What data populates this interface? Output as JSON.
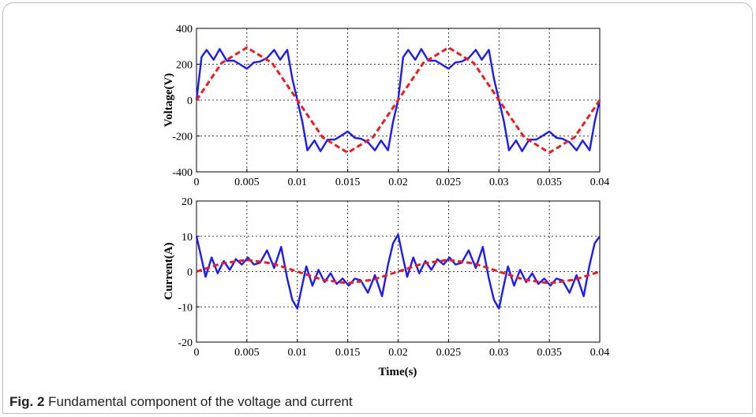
{
  "caption": {
    "label": "Fig. 2",
    "text": "Fundamental component of the voltage and current"
  },
  "colors": {
    "measured": "#1a1aff",
    "fundamental": "#ee1c1c"
  },
  "chart_data": [
    {
      "type": "line",
      "title": "",
      "xlabel": "",
      "ylabel": "Voltage(V)",
      "xlim": [
        0,
        0.04
      ],
      "ylim": [
        -400,
        400
      ],
      "xticks": [
        "0",
        "0.005",
        "0.01",
        "0.015",
        "0.02",
        "0.025",
        "0.03",
        "0.035",
        "0.04"
      ],
      "yticks": [
        "400",
        "200",
        "0",
        "-200",
        "-400"
      ],
      "grid": true,
      "series": [
        {
          "style": "solid-blue",
          "x": [
            0,
            0.0005,
            0.001,
            0.0017,
            0.0023,
            0.003,
            0.0037,
            0.0043,
            0.005,
            0.0057,
            0.0063,
            0.007,
            0.0077,
            0.0083,
            0.009,
            0.0095,
            0.01,
            0.0105,
            0.011,
            0.0117,
            0.0123,
            0.013,
            0.0137,
            0.0143,
            0.015,
            0.0157,
            0.0163,
            0.017,
            0.0177,
            0.0183,
            0.019,
            0.0195,
            0.02,
            0.0205,
            0.021,
            0.0217,
            0.0223,
            0.023,
            0.0237,
            0.0243,
            0.025,
            0.0257,
            0.0263,
            0.027,
            0.0277,
            0.0283,
            0.029,
            0.0295,
            0.03,
            0.0305,
            0.031,
            0.0317,
            0.0323,
            0.033,
            0.0337,
            0.0343,
            0.035,
            0.0357,
            0.0363,
            0.037,
            0.0377,
            0.0383,
            0.039,
            0.0395,
            0.04
          ],
          "y": [
            0,
            240,
            280,
            225,
            285,
            220,
            220,
            200,
            175,
            210,
            215,
            235,
            280,
            225,
            280,
            120,
            0,
            -120,
            -280,
            -225,
            -285,
            -220,
            -220,
            -200,
            -175,
            -210,
            -215,
            -235,
            -280,
            -225,
            -280,
            -120,
            0,
            240,
            280,
            225,
            285,
            220,
            220,
            200,
            175,
            210,
            215,
            235,
            280,
            225,
            280,
            120,
            0,
            -120,
            -280,
            -225,
            -285,
            -220,
            -220,
            -200,
            -175,
            -210,
            -215,
            -235,
            -280,
            -225,
            -280,
            -120,
            0
          ]
        },
        {
          "style": "dashed-red",
          "x": [
            0,
            0.0025,
            0.005,
            0.0075,
            0.01,
            0.0125,
            0.015,
            0.0175,
            0.02,
            0.0225,
            0.025,
            0.0275,
            0.03,
            0.0325,
            0.035,
            0.0375,
            0.04
          ],
          "y": [
            0,
            207,
            293,
            207,
            0,
            -207,
            -293,
            -207,
            0,
            207,
            293,
            207,
            0,
            -207,
            -293,
            -207,
            0
          ]
        }
      ]
    },
    {
      "type": "line",
      "title": "",
      "xlabel": "Time(s)",
      "ylabel": "Current(A)",
      "xlim": [
        0,
        0.04
      ],
      "ylim": [
        -20,
        20
      ],
      "xticks": [
        "0",
        "0.005",
        "0.01",
        "0.015",
        "0.02",
        "0.025",
        "0.03",
        "0.035",
        "0.04"
      ],
      "yticks": [
        "20",
        "10",
        "0",
        "-10",
        "-20"
      ],
      "grid": true,
      "series": [
        {
          "style": "solid-blue",
          "x": [
            0,
            0.0004,
            0.0009,
            0.0015,
            0.0021,
            0.0027,
            0.0033,
            0.0039,
            0.0045,
            0.0051,
            0.0057,
            0.0063,
            0.007,
            0.0077,
            0.0084,
            0.009,
            0.0095,
            0.01,
            0.0104,
            0.0109,
            0.0115,
            0.0121,
            0.0127,
            0.0133,
            0.0139,
            0.0145,
            0.0151,
            0.0157,
            0.0163,
            0.017,
            0.0177,
            0.0184,
            0.019,
            0.0195,
            0.02,
            0.0204,
            0.0209,
            0.0215,
            0.0221,
            0.0227,
            0.0233,
            0.0239,
            0.0245,
            0.0251,
            0.0257,
            0.0263,
            0.027,
            0.0277,
            0.0284,
            0.029,
            0.0295,
            0.03,
            0.0304,
            0.0309,
            0.0315,
            0.0321,
            0.0327,
            0.0333,
            0.0339,
            0.0345,
            0.0351,
            0.0357,
            0.0363,
            0.037,
            0.0377,
            0.0384,
            0.039,
            0.0395,
            0.04
          ],
          "y": [
            10,
            5,
            -1.5,
            4,
            -0.5,
            3,
            0.5,
            3.5,
            2,
            4,
            2,
            2.5,
            6,
            1,
            7,
            -2,
            -8,
            -10.5,
            -5,
            1.5,
            -4,
            0.5,
            -3,
            -0.5,
            -3.5,
            -2,
            -4,
            -2,
            -2.5,
            -6,
            -1,
            -7,
            2,
            8,
            10.5,
            5,
            -1.5,
            4,
            -0.5,
            3,
            0.5,
            3.5,
            2,
            4,
            2,
            2.5,
            6,
            1,
            7,
            -2,
            -8,
            -10.5,
            -5,
            1.5,
            -4,
            0.5,
            -3,
            -0.5,
            -3.5,
            -2,
            -4,
            -2,
            -2.5,
            -6,
            -1,
            -7,
            2,
            8,
            10
          ]
        },
        {
          "style": "dashed-red",
          "x": [
            0,
            0.0025,
            0.005,
            0.0075,
            0.01,
            0.0125,
            0.015,
            0.0175,
            0.02,
            0.0225,
            0.025,
            0.0275,
            0.03,
            0.0325,
            0.035,
            0.0375,
            0.04
          ],
          "y": [
            0,
            2.3,
            3.3,
            2.3,
            0,
            -2.3,
            -3.3,
            -2.3,
            0,
            2.3,
            3.3,
            2.3,
            0,
            -2.3,
            -3.3,
            -2.3,
            0
          ]
        }
      ]
    }
  ]
}
